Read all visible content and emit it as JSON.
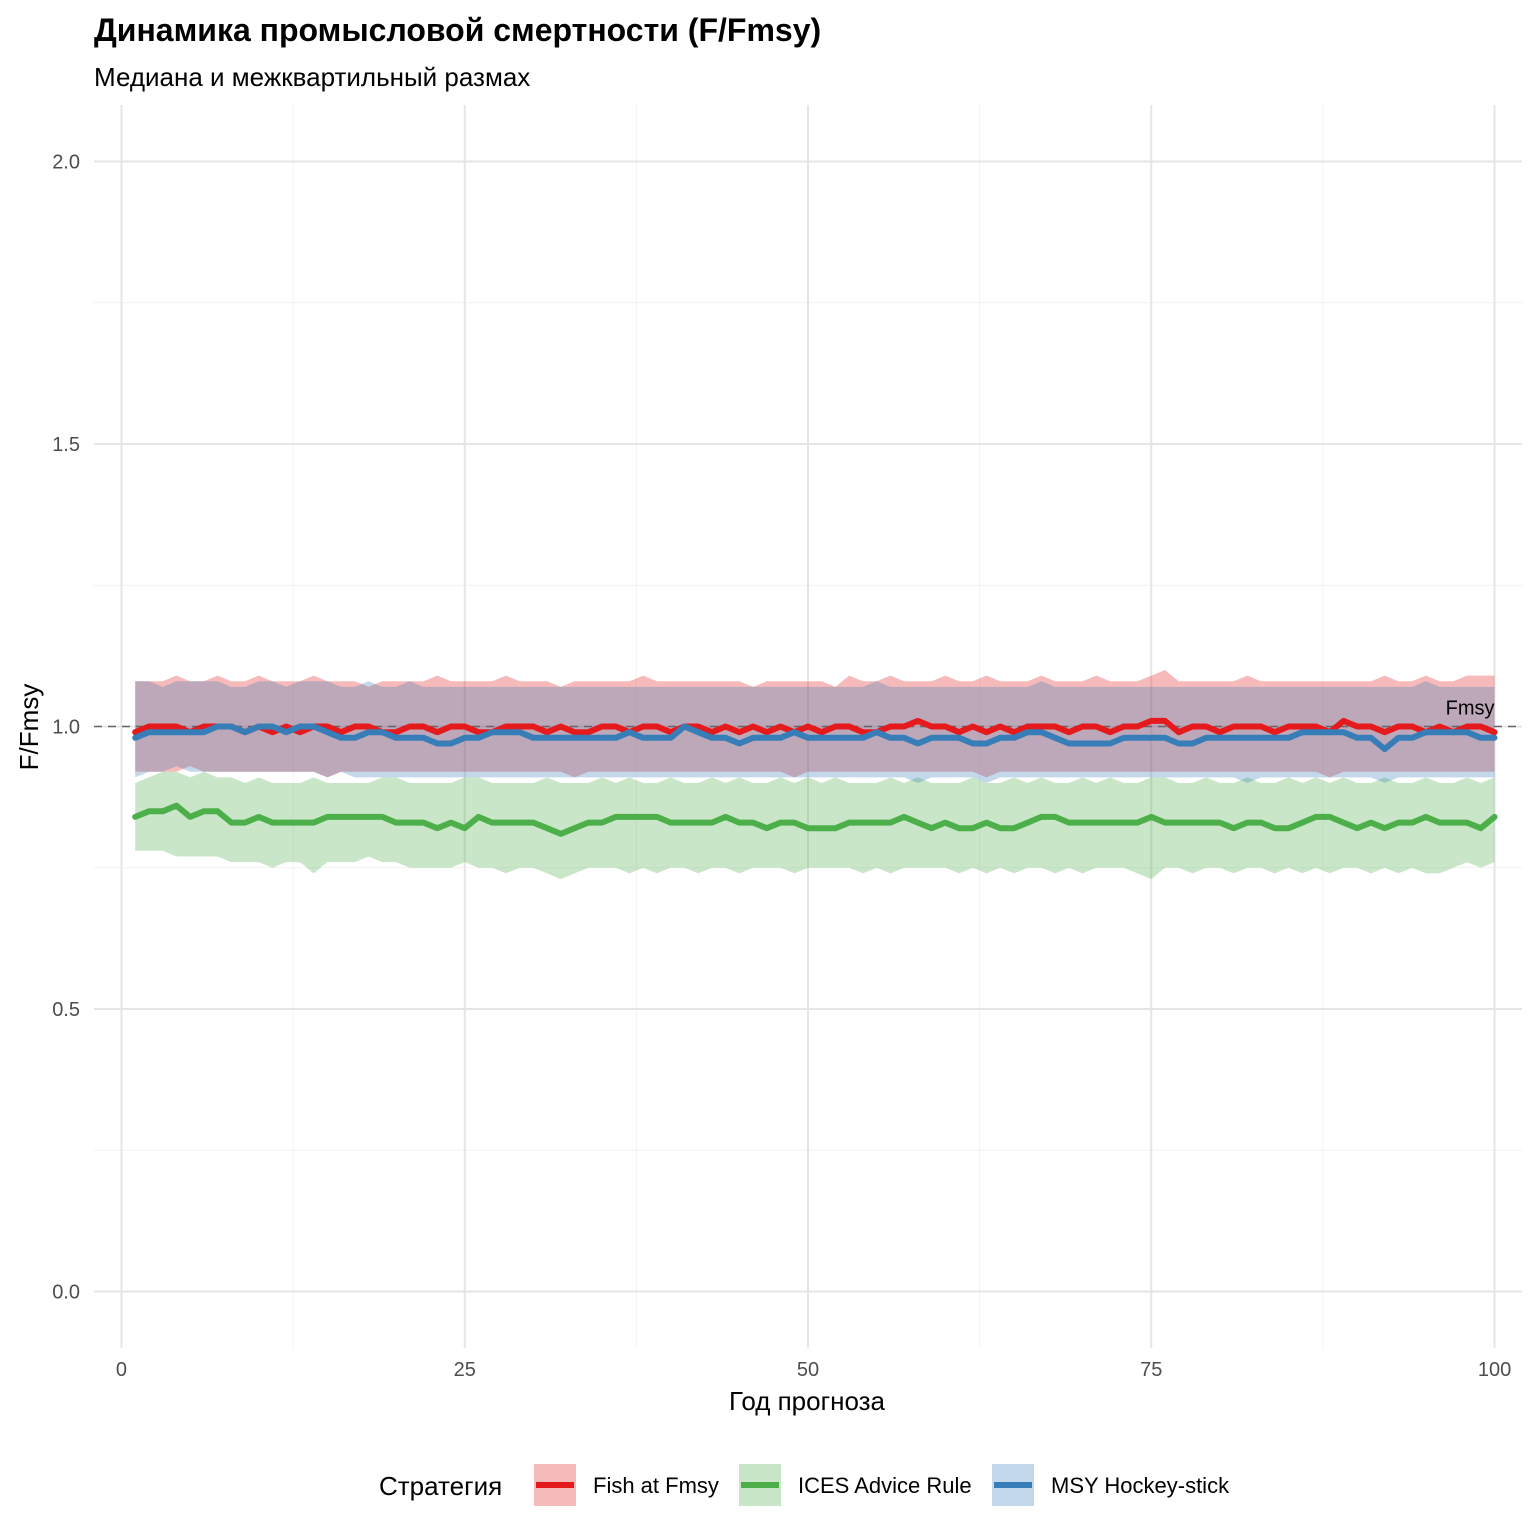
{
  "chart_data": {
    "type": "line",
    "title": "Динамика промысловой смертности (F/Fmsy)",
    "subtitle": "Медиана и межквартильный размах",
    "xlabel": "Год прогноза",
    "ylabel": "F/Fmsy",
    "xlim": [
      -2,
      102
    ],
    "ylim": [
      -0.1,
      2.1
    ],
    "x_ticks": [
      0,
      25,
      50,
      75,
      100
    ],
    "x_tick_labels": [
      "0",
      "25",
      "50",
      "75",
      "100"
    ],
    "y_ticks": [
      0,
      0.5,
      1.0,
      1.5,
      2.0
    ],
    "y_tick_labels": [
      "0.0",
      "0.5",
      "1.0",
      "1.5",
      "2.0"
    ],
    "grid": true,
    "legend_position": "bottom",
    "legend_title": "Стратегия",
    "reference_line": {
      "y": 1.0,
      "label": "Fmsy",
      "style": "dashed",
      "color": "#666666"
    },
    "series": [
      {
        "name": "Fish at Fmsy",
        "color": "#E41A1C",
        "x_start": 1,
        "x_end": 100,
        "median": [
          0.99,
          1.0,
          1.0,
          1.0,
          0.99,
          1.0,
          1.0,
          1.0,
          0.99,
          1.0,
          0.99,
          1.0,
          0.99,
          1.0,
          1.0,
          0.99,
          1.0,
          1.0,
          0.99,
          0.99,
          1.0,
          1.0,
          0.99,
          1.0,
          1.0,
          0.99,
          0.99,
          1.0,
          1.0,
          1.0,
          0.99,
          1.0,
          0.99,
          0.99,
          1.0,
          1.0,
          0.99,
          1.0,
          1.0,
          0.99,
          1.0,
          1.0,
          0.99,
          1.0,
          0.99,
          1.0,
          0.99,
          1.0,
          0.99,
          1.0,
          0.99,
          1.0,
          1.0,
          0.99,
          0.99,
          1.0,
          1.0,
          1.01,
          1.0,
          1.0,
          0.99,
          1.0,
          0.99,
          1.0,
          0.99,
          1.0,
          1.0,
          1.0,
          0.99,
          1.0,
          1.0,
          0.99,
          1.0,
          1.0,
          1.01,
          1.01,
          0.99,
          1.0,
          1.0,
          0.99,
          1.0,
          1.0,
          1.0,
          0.99,
          1.0,
          1.0,
          1.0,
          0.99,
          1.01,
          1.0,
          1.0,
          0.99,
          1.0,
          1.0,
          0.99,
          1.0,
          0.99,
          1.0,
          1.0,
          0.99
        ],
        "q25": [
          0.92,
          0.92,
          0.92,
          0.92,
          0.93,
          0.92,
          0.92,
          0.92,
          0.92,
          0.92,
          0.92,
          0.92,
          0.92,
          0.92,
          0.91,
          0.92,
          0.92,
          0.92,
          0.92,
          0.92,
          0.92,
          0.92,
          0.92,
          0.92,
          0.92,
          0.92,
          0.92,
          0.92,
          0.92,
          0.92,
          0.92,
          0.92,
          0.91,
          0.92,
          0.92,
          0.92,
          0.92,
          0.92,
          0.92,
          0.92,
          0.92,
          0.92,
          0.92,
          0.92,
          0.92,
          0.92,
          0.92,
          0.92,
          0.91,
          0.92,
          0.92,
          0.92,
          0.92,
          0.92,
          0.92,
          0.92,
          0.92,
          0.92,
          0.92,
          0.92,
          0.92,
          0.92,
          0.91,
          0.92,
          0.92,
          0.92,
          0.92,
          0.92,
          0.92,
          0.92,
          0.92,
          0.92,
          0.92,
          0.92,
          0.92,
          0.92,
          0.92,
          0.92,
          0.92,
          0.92,
          0.92,
          0.92,
          0.92,
          0.92,
          0.92,
          0.92,
          0.92,
          0.91,
          0.92,
          0.92,
          0.92,
          0.92,
          0.92,
          0.92,
          0.92,
          0.92,
          0.92,
          0.92,
          0.92,
          0.92
        ],
        "q75": [
          1.08,
          1.08,
          1.08,
          1.09,
          1.08,
          1.08,
          1.09,
          1.08,
          1.08,
          1.09,
          1.08,
          1.08,
          1.08,
          1.09,
          1.08,
          1.08,
          1.08,
          1.07,
          1.08,
          1.08,
          1.08,
          1.08,
          1.09,
          1.08,
          1.08,
          1.08,
          1.08,
          1.09,
          1.08,
          1.08,
          1.08,
          1.07,
          1.08,
          1.08,
          1.08,
          1.08,
          1.08,
          1.09,
          1.08,
          1.08,
          1.08,
          1.08,
          1.08,
          1.08,
          1.08,
          1.07,
          1.08,
          1.08,
          1.08,
          1.08,
          1.08,
          1.07,
          1.09,
          1.08,
          1.08,
          1.09,
          1.08,
          1.08,
          1.08,
          1.09,
          1.08,
          1.08,
          1.09,
          1.08,
          1.08,
          1.08,
          1.09,
          1.08,
          1.08,
          1.08,
          1.09,
          1.08,
          1.08,
          1.08,
          1.09,
          1.1,
          1.08,
          1.08,
          1.08,
          1.08,
          1.08,
          1.09,
          1.08,
          1.08,
          1.08,
          1.08,
          1.08,
          1.08,
          1.08,
          1.08,
          1.08,
          1.09,
          1.08,
          1.08,
          1.09,
          1.08,
          1.08,
          1.09,
          1.09,
          1.09
        ]
      },
      {
        "name": "ICES Advice Rule",
        "color": "#4DAF4A",
        "x_start": 1,
        "x_end": 100,
        "median": [
          0.84,
          0.85,
          0.85,
          0.86,
          0.84,
          0.85,
          0.85,
          0.83,
          0.83,
          0.84,
          0.83,
          0.83,
          0.83,
          0.83,
          0.84,
          0.84,
          0.84,
          0.84,
          0.84,
          0.83,
          0.83,
          0.83,
          0.82,
          0.83,
          0.82,
          0.84,
          0.83,
          0.83,
          0.83,
          0.83,
          0.82,
          0.81,
          0.82,
          0.83,
          0.83,
          0.84,
          0.84,
          0.84,
          0.84,
          0.83,
          0.83,
          0.83,
          0.83,
          0.84,
          0.83,
          0.83,
          0.82,
          0.83,
          0.83,
          0.82,
          0.82,
          0.82,
          0.83,
          0.83,
          0.83,
          0.83,
          0.84,
          0.83,
          0.82,
          0.83,
          0.82,
          0.82,
          0.83,
          0.82,
          0.82,
          0.83,
          0.84,
          0.84,
          0.83,
          0.83,
          0.83,
          0.83,
          0.83,
          0.83,
          0.84,
          0.83,
          0.83,
          0.83,
          0.83,
          0.83,
          0.82,
          0.83,
          0.83,
          0.82,
          0.82,
          0.83,
          0.84,
          0.84,
          0.83,
          0.82,
          0.83,
          0.82,
          0.83,
          0.83,
          0.84,
          0.83,
          0.83,
          0.83,
          0.82,
          0.84
        ],
        "q25": [
          0.78,
          0.78,
          0.78,
          0.77,
          0.77,
          0.77,
          0.77,
          0.76,
          0.76,
          0.76,
          0.75,
          0.76,
          0.76,
          0.74,
          0.76,
          0.76,
          0.76,
          0.77,
          0.76,
          0.76,
          0.75,
          0.75,
          0.75,
          0.75,
          0.76,
          0.75,
          0.75,
          0.74,
          0.75,
          0.75,
          0.74,
          0.73,
          0.74,
          0.75,
          0.75,
          0.75,
          0.74,
          0.75,
          0.74,
          0.75,
          0.75,
          0.74,
          0.75,
          0.75,
          0.74,
          0.75,
          0.75,
          0.75,
          0.74,
          0.75,
          0.75,
          0.75,
          0.75,
          0.74,
          0.75,
          0.74,
          0.75,
          0.75,
          0.75,
          0.75,
          0.74,
          0.75,
          0.74,
          0.75,
          0.74,
          0.75,
          0.75,
          0.74,
          0.75,
          0.74,
          0.75,
          0.75,
          0.75,
          0.74,
          0.73,
          0.75,
          0.75,
          0.74,
          0.75,
          0.75,
          0.74,
          0.75,
          0.75,
          0.74,
          0.75,
          0.74,
          0.75,
          0.74,
          0.75,
          0.75,
          0.74,
          0.75,
          0.74,
          0.75,
          0.74,
          0.74,
          0.75,
          0.76,
          0.75,
          0.76
        ],
        "q75": [
          0.9,
          0.91,
          0.92,
          0.92,
          0.91,
          0.92,
          0.91,
          0.91,
          0.9,
          0.91,
          0.9,
          0.9,
          0.9,
          0.91,
          0.9,
          0.9,
          0.9,
          0.9,
          0.91,
          0.91,
          0.9,
          0.9,
          0.9,
          0.9,
          0.91,
          0.91,
          0.9,
          0.9,
          0.9,
          0.9,
          0.91,
          0.9,
          0.9,
          0.9,
          0.91,
          0.9,
          0.91,
          0.9,
          0.9,
          0.91,
          0.9,
          0.9,
          0.91,
          0.9,
          0.91,
          0.9,
          0.9,
          0.91,
          0.9,
          0.91,
          0.9,
          0.91,
          0.9,
          0.9,
          0.9,
          0.91,
          0.9,
          0.91,
          0.9,
          0.9,
          0.9,
          0.91,
          0.9,
          0.9,
          0.91,
          0.9,
          0.91,
          0.9,
          0.9,
          0.91,
          0.9,
          0.91,
          0.9,
          0.9,
          0.91,
          0.91,
          0.9,
          0.9,
          0.91,
          0.9,
          0.9,
          0.91,
          0.9,
          0.9,
          0.91,
          0.9,
          0.91,
          0.9,
          0.91,
          0.9,
          0.9,
          0.91,
          0.9,
          0.9,
          0.91,
          0.9,
          0.9,
          0.91,
          0.9,
          0.91
        ]
      },
      {
        "name": "MSY Hockey-stick",
        "color": "#377EB8",
        "x_start": 1,
        "x_end": 100,
        "median": [
          0.98,
          0.99,
          0.99,
          0.99,
          0.99,
          0.99,
          1.0,
          1.0,
          0.99,
          1.0,
          1.0,
          0.99,
          1.0,
          1.0,
          0.99,
          0.98,
          0.98,
          0.99,
          0.99,
          0.98,
          0.98,
          0.98,
          0.97,
          0.97,
          0.98,
          0.98,
          0.99,
          0.99,
          0.99,
          0.98,
          0.98,
          0.98,
          0.98,
          0.98,
          0.98,
          0.98,
          0.99,
          0.98,
          0.98,
          0.98,
          1.0,
          0.99,
          0.98,
          0.98,
          0.97,
          0.98,
          0.98,
          0.98,
          0.99,
          0.98,
          0.98,
          0.98,
          0.98,
          0.98,
          0.99,
          0.98,
          0.98,
          0.97,
          0.98,
          0.98,
          0.98,
          0.97,
          0.97,
          0.98,
          0.98,
          0.99,
          0.99,
          0.98,
          0.97,
          0.97,
          0.97,
          0.97,
          0.98,
          0.98,
          0.98,
          0.98,
          0.97,
          0.97,
          0.98,
          0.98,
          0.98,
          0.98,
          0.98,
          0.98,
          0.98,
          0.99,
          0.99,
          0.99,
          0.99,
          0.98,
          0.98,
          0.96,
          0.98,
          0.98,
          0.99,
          0.99,
          0.99,
          0.99,
          0.98,
          0.98
        ],
        "q25": [
          0.91,
          0.92,
          0.92,
          0.93,
          0.92,
          0.92,
          0.92,
          0.92,
          0.92,
          0.92,
          0.92,
          0.92,
          0.92,
          0.92,
          0.91,
          0.92,
          0.91,
          0.91,
          0.91,
          0.91,
          0.91,
          0.91,
          0.91,
          0.91,
          0.91,
          0.91,
          0.91,
          0.91,
          0.91,
          0.91,
          0.91,
          0.91,
          0.91,
          0.91,
          0.91,
          0.91,
          0.91,
          0.91,
          0.91,
          0.91,
          0.91,
          0.91,
          0.91,
          0.91,
          0.91,
          0.91,
          0.91,
          0.91,
          0.91,
          0.91,
          0.91,
          0.91,
          0.91,
          0.91,
          0.91,
          0.91,
          0.91,
          0.9,
          0.91,
          0.91,
          0.91,
          0.91,
          0.9,
          0.91,
          0.91,
          0.91,
          0.91,
          0.91,
          0.91,
          0.91,
          0.91,
          0.91,
          0.91,
          0.91,
          0.91,
          0.91,
          0.91,
          0.91,
          0.91,
          0.91,
          0.91,
          0.9,
          0.91,
          0.91,
          0.91,
          0.91,
          0.91,
          0.91,
          0.91,
          0.91,
          0.91,
          0.9,
          0.91,
          0.91,
          0.91,
          0.91,
          0.91,
          0.91,
          0.91,
          0.91
        ],
        "q75": [
          1.08,
          1.08,
          1.07,
          1.08,
          1.08,
          1.08,
          1.08,
          1.07,
          1.07,
          1.08,
          1.08,
          1.07,
          1.08,
          1.08,
          1.08,
          1.07,
          1.07,
          1.08,
          1.07,
          1.07,
          1.08,
          1.07,
          1.07,
          1.07,
          1.07,
          1.07,
          1.07,
          1.07,
          1.07,
          1.07,
          1.07,
          1.07,
          1.07,
          1.07,
          1.07,
          1.07,
          1.07,
          1.07,
          1.07,
          1.07,
          1.07,
          1.07,
          1.07,
          1.07,
          1.07,
          1.07,
          1.07,
          1.07,
          1.07,
          1.07,
          1.07,
          1.07,
          1.07,
          1.07,
          1.08,
          1.07,
          1.07,
          1.07,
          1.07,
          1.07,
          1.07,
          1.07,
          1.07,
          1.07,
          1.07,
          1.07,
          1.08,
          1.07,
          1.07,
          1.07,
          1.07,
          1.07,
          1.07,
          1.07,
          1.07,
          1.07,
          1.07,
          1.07,
          1.07,
          1.07,
          1.07,
          1.07,
          1.07,
          1.07,
          1.07,
          1.07,
          1.07,
          1.07,
          1.07,
          1.07,
          1.07,
          1.07,
          1.07,
          1.07,
          1.08,
          1.07,
          1.07,
          1.07,
          1.07,
          1.07
        ]
      }
    ]
  }
}
